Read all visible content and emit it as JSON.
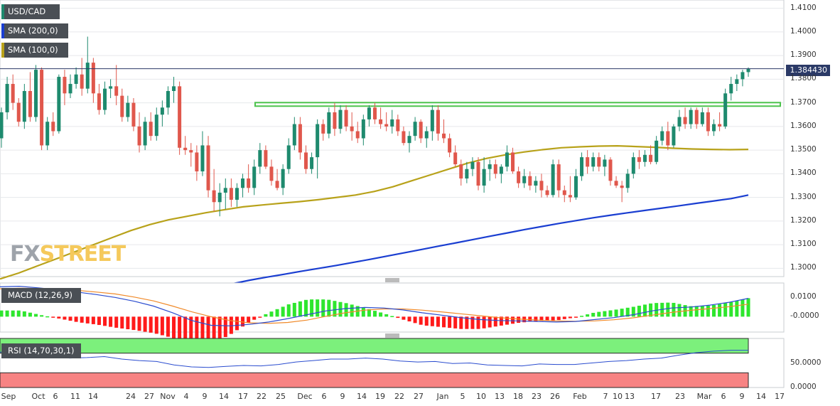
{
  "legend": {
    "pair": "USD/CAD",
    "sma200": "SMA (200,0)",
    "sma100": "SMA (100,0)",
    "macd": "MACD (12,26,9)",
    "rsi": "RSI (14,70,30,1)"
  },
  "watermark": {
    "fx": "FX",
    "street": "STREET"
  },
  "colors": {
    "up": "#1e8a6e",
    "down": "#e0574c",
    "sma200": "#1a3ed1",
    "sma100": "#b8a21a",
    "resistance": "#4cc34c",
    "macd_line": "#2a4ccf",
    "signal_line": "#f08a2a",
    "hist_pos": "#2ee62e",
    "hist_neg": "#ff1a1a",
    "rsi_overbought": "#7cf07c",
    "rsi_oversold": "#f78383"
  },
  "chart_data": {
    "type": "candlestick",
    "pair": "USD/CAD",
    "last_price": "1.384430",
    "price_axis": {
      "ticks": [
        "1.4100",
        "1.4000",
        "1.3900",
        "1.3800",
        "1.3700",
        "1.3600",
        "1.3500",
        "1.3400",
        "1.3300",
        "1.3200",
        "1.3100",
        "1.3000"
      ],
      "range": [
        1.2965,
        1.4135
      ]
    },
    "macd_axis": {
      "ticks": [
        "0.0100",
        "-0.0000"
      ]
    },
    "rsi_axis": {
      "ticks": [
        "50.0000",
        "0.0000"
      ]
    },
    "x_labels": [
      "Sep",
      "Oct",
      "6",
      "11",
      "14",
      "24",
      "27",
      "Nov",
      "4",
      "9",
      "14",
      "17",
      "22",
      "25",
      "Dec",
      "6",
      "9",
      "14",
      "19",
      "22",
      "27",
      "Jan",
      "5",
      "10",
      "13",
      "18",
      "23",
      "26",
      "Feb",
      "7",
      "10",
      "13",
      "17",
      "23",
      "Mar",
      "6",
      "9",
      "14",
      "17"
    ],
    "resistance_level": 1.3695,
    "candles": [
      [
        1.355,
        1.368,
        1.351,
        1.366
      ],
      [
        1.366,
        1.381,
        1.363,
        1.378
      ],
      [
        1.378,
        1.382,
        1.367,
        1.37
      ],
      [
        1.37,
        1.372,
        1.36,
        1.362
      ],
      [
        1.362,
        1.378,
        1.359,
        1.375
      ],
      [
        1.375,
        1.383,
        1.362,
        1.364
      ],
      [
        1.364,
        1.386,
        1.362,
        1.384
      ],
      [
        1.384,
        1.385,
        1.35,
        1.352
      ],
      [
        1.352,
        1.364,
        1.35,
        1.362
      ],
      [
        1.362,
        1.366,
        1.356,
        1.358
      ],
      [
        1.358,
        1.382,
        1.357,
        1.381
      ],
      [
        1.381,
        1.384,
        1.369,
        1.374
      ],
      [
        1.374,
        1.382,
        1.372,
        1.378
      ],
      [
        1.378,
        1.385,
        1.376,
        1.382
      ],
      [
        1.382,
        1.389,
        1.373,
        1.376
      ],
      [
        1.376,
        1.398,
        1.374,
        1.387
      ],
      [
        1.387,
        1.389,
        1.37,
        1.374
      ],
      [
        1.374,
        1.378,
        1.365,
        1.367
      ],
      [
        1.367,
        1.379,
        1.365,
        1.376
      ],
      [
        1.376,
        1.38,
        1.372,
        1.377
      ],
      [
        1.377,
        1.386,
        1.369,
        1.373
      ],
      [
        1.373,
        1.376,
        1.362,
        1.364
      ],
      [
        1.364,
        1.373,
        1.362,
        1.37
      ],
      [
        1.37,
        1.372,
        1.358,
        1.36
      ],
      [
        1.36,
        1.366,
        1.349,
        1.352
      ],
      [
        1.352,
        1.364,
        1.35,
        1.362
      ],
      [
        1.362,
        1.366,
        1.354,
        1.356
      ],
      [
        1.356,
        1.368,
        1.354,
        1.365
      ],
      [
        1.365,
        1.371,
        1.36,
        1.368
      ],
      [
        1.368,
        1.377,
        1.365,
        1.375
      ],
      [
        1.375,
        1.381,
        1.37,
        1.377
      ],
      [
        1.377,
        1.379,
        1.348,
        1.351
      ],
      [
        1.351,
        1.356,
        1.348,
        1.35
      ],
      [
        1.35,
        1.353,
        1.343,
        1.349
      ],
      [
        1.349,
        1.352,
        1.337,
        1.341
      ],
      [
        1.341,
        1.358,
        1.339,
        1.352
      ],
      [
        1.352,
        1.356,
        1.33,
        1.333
      ],
      [
        1.333,
        1.342,
        1.324,
        1.328
      ],
      [
        1.328,
        1.336,
        1.322,
        1.332
      ],
      [
        1.332,
        1.338,
        1.325,
        1.334
      ],
      [
        1.334,
        1.338,
        1.326,
        1.329
      ],
      [
        1.329,
        1.336,
        1.326,
        1.334
      ],
      [
        1.334,
        1.34,
        1.33,
        1.338
      ],
      [
        1.338,
        1.344,
        1.332,
        1.334
      ],
      [
        1.334,
        1.346,
        1.331,
        1.343
      ],
      [
        1.343,
        1.353,
        1.34,
        1.35
      ],
      [
        1.35,
        1.352,
        1.342,
        1.343
      ],
      [
        1.343,
        1.346,
        1.335,
        1.337
      ],
      [
        1.337,
        1.342,
        1.333,
        1.334
      ],
      [
        1.334,
        1.344,
        1.331,
        1.342
      ],
      [
        1.342,
        1.355,
        1.34,
        1.352
      ],
      [
        1.352,
        1.364,
        1.35,
        1.361
      ],
      [
        1.361,
        1.364,
        1.346,
        1.349
      ],
      [
        1.349,
        1.352,
        1.34,
        1.342
      ],
      [
        1.342,
        1.349,
        1.34,
        1.347
      ],
      [
        1.347,
        1.363,
        1.338,
        1.361
      ],
      [
        1.361,
        1.363,
        1.354,
        1.357
      ],
      [
        1.357,
        1.368,
        1.355,
        1.366
      ],
      [
        1.366,
        1.37,
        1.356,
        1.359
      ],
      [
        1.359,
        1.369,
        1.357,
        1.367
      ],
      [
        1.367,
        1.369,
        1.358,
        1.36
      ],
      [
        1.36,
        1.366,
        1.354,
        1.358
      ],
      [
        1.358,
        1.362,
        1.353,
        1.355
      ],
      [
        1.355,
        1.365,
        1.352,
        1.363
      ],
      [
        1.363,
        1.369,
        1.36,
        1.368
      ],
      [
        1.368,
        1.37,
        1.361,
        1.363
      ],
      [
        1.363,
        1.368,
        1.359,
        1.361
      ],
      [
        1.361,
        1.366,
        1.358,
        1.36
      ],
      [
        1.36,
        1.367,
        1.357,
        1.363
      ],
      [
        1.363,
        1.365,
        1.356,
        1.358
      ],
      [
        1.358,
        1.36,
        1.352,
        1.353
      ],
      [
        1.353,
        1.358,
        1.349,
        1.356
      ],
      [
        1.356,
        1.364,
        1.354,
        1.362
      ],
      [
        1.362,
        1.363,
        1.353,
        1.355
      ],
      [
        1.355,
        1.36,
        1.351,
        1.358
      ],
      [
        1.358,
        1.369,
        1.354,
        1.367
      ],
      [
        1.367,
        1.369,
        1.354,
        1.357
      ],
      [
        1.357,
        1.363,
        1.353,
        1.355
      ],
      [
        1.355,
        1.357,
        1.347,
        1.349
      ],
      [
        1.349,
        1.352,
        1.343,
        1.344
      ],
      [
        1.344,
        1.346,
        1.335,
        1.338
      ],
      [
        1.338,
        1.345,
        1.336,
        1.342
      ],
      [
        1.342,
        1.347,
        1.339,
        1.345
      ],
      [
        1.345,
        1.347,
        1.333,
        1.335
      ],
      [
        1.335,
        1.347,
        1.332,
        1.342
      ],
      [
        1.342,
        1.346,
        1.337,
        1.344
      ],
      [
        1.344,
        1.346,
        1.338,
        1.34
      ],
      [
        1.34,
        1.344,
        1.336,
        1.343
      ],
      [
        1.343,
        1.352,
        1.341,
        1.349
      ],
      [
        1.349,
        1.351,
        1.34,
        1.341
      ],
      [
        1.341,
        1.343,
        1.334,
        1.336
      ],
      [
        1.336,
        1.342,
        1.334,
        1.339
      ],
      [
        1.339,
        1.341,
        1.333,
        1.335
      ],
      [
        1.335,
        1.339,
        1.332,
        1.337
      ],
      [
        1.337,
        1.34,
        1.33,
        1.333
      ],
      [
        1.333,
        1.335,
        1.33,
        1.331
      ],
      [
        1.331,
        1.346,
        1.33,
        1.344
      ],
      [
        1.344,
        1.346,
        1.33,
        1.333
      ],
      [
        1.333,
        1.335,
        1.328,
        1.331
      ],
      [
        1.331,
        1.339,
        1.328,
        1.33
      ],
      [
        1.33,
        1.342,
        1.329,
        1.339
      ],
      [
        1.339,
        1.349,
        1.337,
        1.347
      ],
      [
        1.347,
        1.35,
        1.34,
        1.343
      ],
      [
        1.343,
        1.349,
        1.341,
        1.347
      ],
      [
        1.347,
        1.349,
        1.341,
        1.343
      ],
      [
        1.343,
        1.348,
        1.339,
        1.346
      ],
      [
        1.346,
        1.347,
        1.335,
        1.337
      ],
      [
        1.337,
        1.339,
        1.334,
        1.335
      ],
      [
        1.335,
        1.337,
        1.328,
        1.334
      ],
      [
        1.334,
        1.342,
        1.332,
        1.34
      ],
      [
        1.34,
        1.349,
        1.338,
        1.347
      ],
      [
        1.347,
        1.35,
        1.342,
        1.345
      ],
      [
        1.345,
        1.35,
        1.343,
        1.348
      ],
      [
        1.348,
        1.352,
        1.344,
        1.345
      ],
      [
        1.345,
        1.356,
        1.344,
        1.354
      ],
      [
        1.354,
        1.36,
        1.352,
        1.358
      ],
      [
        1.358,
        1.362,
        1.35,
        1.352
      ],
      [
        1.352,
        1.361,
        1.351,
        1.36
      ],
      [
        1.36,
        1.367,
        1.358,
        1.364
      ],
      [
        1.364,
        1.368,
        1.359,
        1.361
      ],
      [
        1.361,
        1.368,
        1.359,
        1.367
      ],
      [
        1.367,
        1.368,
        1.359,
        1.361
      ],
      [
        1.361,
        1.368,
        1.36,
        1.366
      ],
      [
        1.366,
        1.368,
        1.356,
        1.358
      ],
      [
        1.358,
        1.363,
        1.356,
        1.361
      ],
      [
        1.361,
        1.366,
        1.358,
        1.36
      ],
      [
        1.36,
        1.376,
        1.359,
        1.374
      ],
      [
        1.374,
        1.381,
        1.371,
        1.378
      ],
      [
        1.378,
        1.382,
        1.375,
        1.38
      ],
      [
        1.38,
        1.384,
        1.377,
        1.383
      ],
      [
        1.383,
        1.385,
        1.381,
        1.3844
      ]
    ],
    "sma100": [
      1.2955,
      1.298,
      1.301,
      1.304,
      1.307,
      1.31,
      1.313,
      1.316,
      1.3185,
      1.3205,
      1.322,
      1.3235,
      1.3248,
      1.326,
      1.3268,
      1.3275,
      1.3282,
      1.329,
      1.33,
      1.331,
      1.3325,
      1.3345,
      1.337,
      1.3395,
      1.342,
      1.3445,
      1.3465,
      1.348,
      1.3492,
      1.3502,
      1.351,
      1.3514,
      1.3517,
      1.3518,
      1.3515,
      1.3512,
      1.3508,
      1.3505,
      1.3503,
      1.3502,
      1.3503
    ],
    "sma200": [
      1.289,
      1.2905,
      1.292,
      1.2935,
      1.295,
      1.2963,
      1.2975,
      1.2988,
      1.3,
      1.3012,
      1.3025,
      1.3038,
      1.3052,
      1.3066,
      1.308,
      1.3094,
      1.3108,
      1.3122,
      1.3136,
      1.315,
      1.3164,
      1.3177,
      1.319,
      1.3202,
      1.3214,
      1.3225,
      1.3235,
      1.3245,
      1.3255,
      1.3265,
      1.3275,
      1.3285,
      1.3295,
      1.331
    ],
    "macd": {
      "macd": [
        0.0155,
        0.0158,
        0.015,
        0.014,
        0.0128,
        0.0115,
        0.01,
        0.008,
        0.0055,
        0.002,
        -0.002,
        -0.0045,
        -0.0048,
        -0.004,
        -0.0028,
        -0.001,
        0.001,
        0.003,
        0.0042,
        0.0048,
        0.0045,
        0.0035,
        0.002,
        0.0008,
        -0.0005,
        -0.0015,
        -0.002,
        -0.0022,
        -0.0025,
        -0.0028,
        -0.0025,
        -0.0015,
        -0.0005,
        0.001,
        0.003,
        0.0045,
        0.005,
        0.006,
        0.0075,
        0.0095
      ],
      "signal": [
        0.0145,
        0.0148,
        0.0147,
        0.0143,
        0.0137,
        0.0128,
        0.0118,
        0.0102,
        0.0082,
        0.0055,
        0.0025,
        0.0,
        -0.002,
        -0.0032,
        -0.0035,
        -0.003,
        -0.0018,
        0.0002,
        0.002,
        0.0034,
        0.004,
        0.004,
        0.0034,
        0.0025,
        0.0015,
        0.0005,
        -0.0005,
        -0.0012,
        -0.0018,
        -0.0022,
        -0.0024,
        -0.0022,
        -0.0016,
        -0.0006,
        0.0008,
        0.0022,
        0.0033,
        0.0042,
        0.0052,
        0.0065
      ]
    },
    "rsi": {
      "overbought": 70,
      "oversold": 30,
      "values": [
        72,
        74,
        70,
        63,
        60,
        61,
        63,
        58,
        55,
        53,
        46,
        42,
        41,
        43,
        45,
        44,
        47,
        52,
        55,
        58,
        58,
        60,
        58,
        54,
        52,
        53,
        49,
        50,
        46,
        45,
        44,
        48,
        47,
        47,
        50,
        53,
        55,
        58,
        60,
        66,
        71,
        74,
        76,
        76
      ]
    }
  }
}
